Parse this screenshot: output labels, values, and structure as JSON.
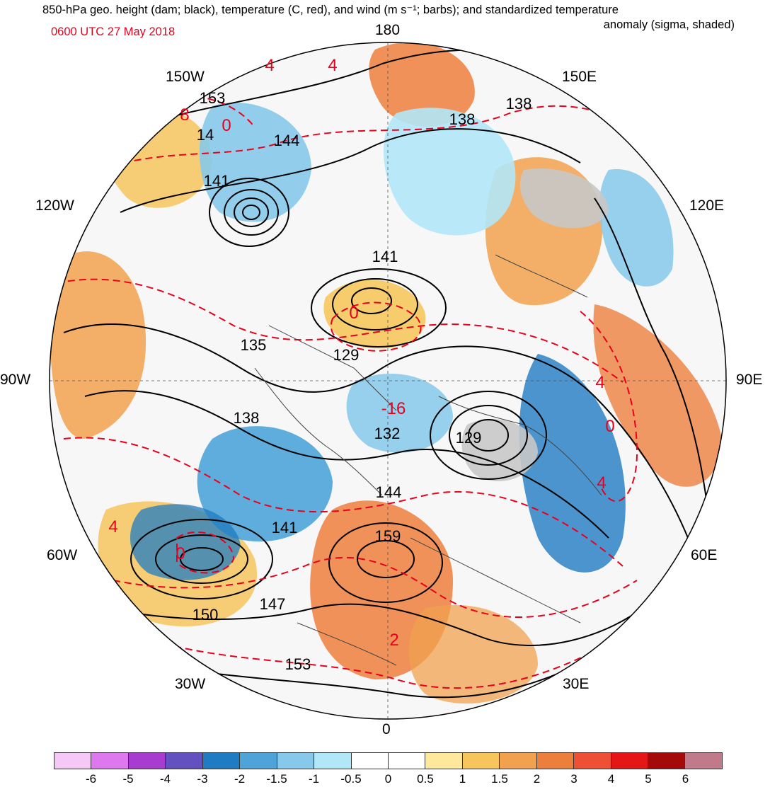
{
  "title": {
    "line1": "850-hPa geo. height (dam; black), temperature (C, red), and wind (m s⁻¹; barbs); and standardized temperature",
    "line2": "anomaly (sigma, shaded)",
    "datetime": "0600 UTC 27 May 2018"
  },
  "longitude_labels": {
    "n180": "180",
    "n150e": "150E",
    "n120e": "120E",
    "n90e": "90E",
    "n60e": "60E",
    "n30e": "30E",
    "n0": "0",
    "n30w": "30W",
    "n60w": "60W",
    "n90w": "90W",
    "n120w": "120W",
    "n150w": "150W"
  },
  "height_contour_labels": [
    "153",
    "144",
    "138",
    "138",
    "141",
    "141",
    "135",
    "129",
    "138",
    "132",
    "129",
    "144",
    "141",
    "159",
    "147",
    "150",
    "153",
    "14"
  ],
  "temperature_contour_labels": [
    "4",
    "4",
    "8",
    "0",
    "0",
    "-16",
    "4",
    "0",
    "4",
    "4",
    "0",
    "2"
  ],
  "colorbar": {
    "colors": [
      "#f6c8f5",
      "#dd78ee",
      "#a83cd0",
      "#6251bf",
      "#1f7bc2",
      "#4ea4d8",
      "#86c9ea",
      "#b1e7f7",
      "#ffffff",
      "#ffffff",
      "#fde89b",
      "#f6c65d",
      "#f2a24f",
      "#ed7f3d",
      "#ee5035",
      "#e41616",
      "#a40a0a",
      "#c07a8a"
    ],
    "ticks": [
      "-6",
      "-5",
      "-4",
      "-3",
      "-2",
      "-1.5",
      "-1",
      "-0.5",
      "0",
      "0.5",
      "1",
      "1.5",
      "2",
      "3",
      "4",
      "5",
      "6"
    ]
  },
  "colors": {
    "temperature": "#e8001c",
    "height": "#000000",
    "land_outline": "#444444",
    "missing_terrain": "#c8c8c8"
  }
}
